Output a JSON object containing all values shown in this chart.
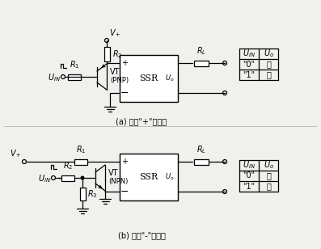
{
  "bg_color": "#f0f0ec",
  "title_a": "(a) 控制\"+\"输入端",
  "title_b": "(b) 控制\"-\"输入端",
  "table_a_rows": [
    [
      "\"0\"",
      "通"
    ],
    [
      "\"1\"",
      "断"
    ]
  ],
  "table_b_rows": [
    [
      "\"0\"",
      "断"
    ],
    [
      "\"1\"",
      "通"
    ]
  ],
  "font_size_label": 7,
  "font_size_title": 7,
  "font_size_table": 7
}
